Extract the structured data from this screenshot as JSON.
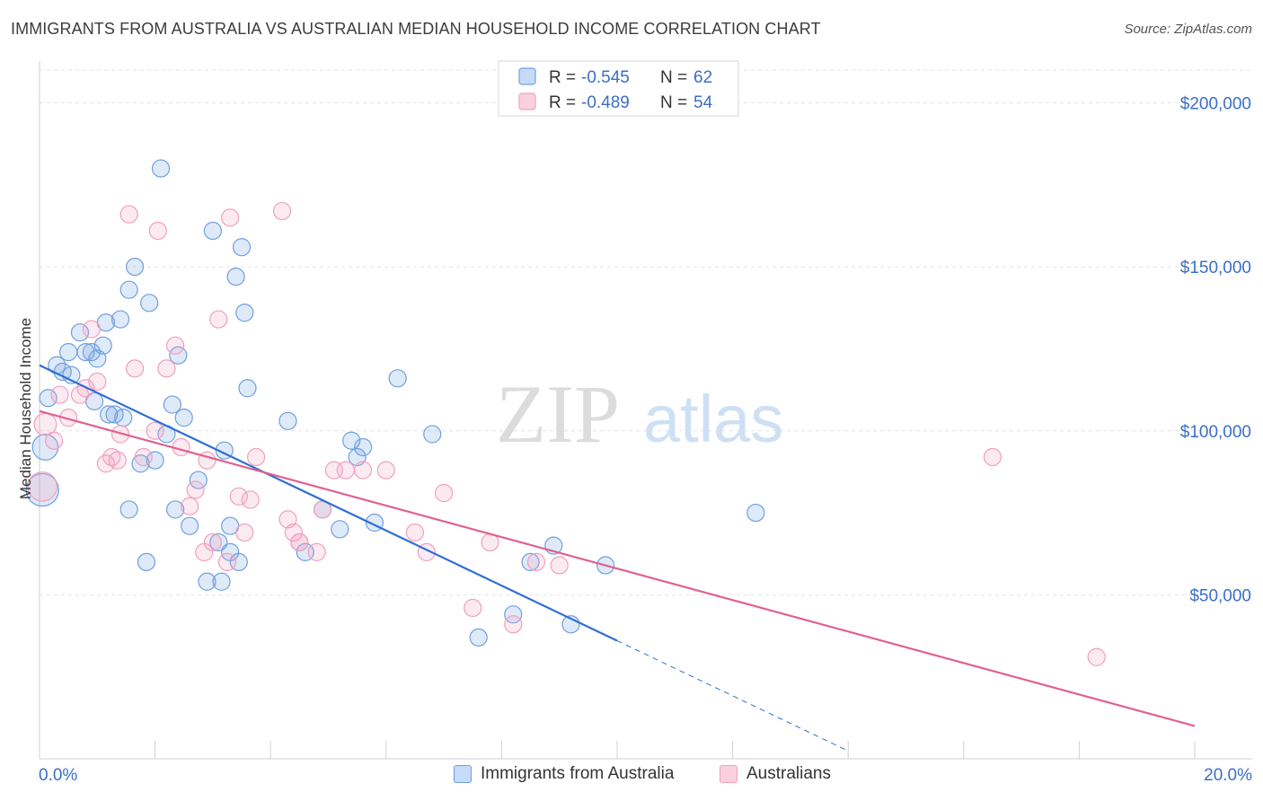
{
  "title": "IMMIGRANTS FROM AUSTRALIA VS AUSTRALIAN MEDIAN HOUSEHOLD INCOME CORRELATION CHART",
  "source": "Source: ZipAtlas.com",
  "watermark": {
    "zip": "ZIP",
    "atlas": "atlas"
  },
  "legend_top": {
    "r_label": "R =",
    "n_label": "N =",
    "rows": [
      {
        "r": "-0.545",
        "n": "62"
      },
      {
        "r": "-0.489",
        "n": "54"
      }
    ]
  },
  "chart_data": {
    "type": "scatter",
    "title": "IMMIGRANTS FROM AUSTRALIA VS AUSTRALIAN MEDIAN HOUSEHOLD INCOME CORRELATION CHART",
    "xlabel": "",
    "ylabel": "Median Household Income",
    "xlim": [
      0,
      20
    ],
    "ylim": [
      0,
      210000
    ],
    "x_tick_labels": [
      "0.0%",
      "20.0%"
    ],
    "y_ticks": [
      50000,
      100000,
      150000,
      200000
    ],
    "y_tick_labels": [
      "$50,000",
      "$100,000",
      "$150,000",
      "$200,000"
    ],
    "grid": true,
    "legend_position": "bottom",
    "colors": {
      "blue": "#6f9fe0",
      "blue_line": "#2f6fd4",
      "pink": "#f0a0bd",
      "pink_line": "#e0608e",
      "tick_label": "#3b6fc4"
    },
    "series": [
      {
        "name": "Immigrants from Australia",
        "color": "#6f9fe0",
        "r": -0.545,
        "n": 62,
        "trend": {
          "x0": 0.0,
          "y0": 120000,
          "x1": 10.0,
          "y1": 36000,
          "dash_to_x": 14.0
        },
        "points": [
          {
            "x": 0.15,
            "y": 110000,
            "s": 1.0
          },
          {
            "x": 0.3,
            "y": 120000,
            "s": 1.0
          },
          {
            "x": 0.4,
            "y": 118000,
            "s": 1.0
          },
          {
            "x": 0.5,
            "y": 124000,
            "s": 1.0
          },
          {
            "x": 0.55,
            "y": 117000,
            "s": 1.0
          },
          {
            "x": 0.7,
            "y": 130000,
            "s": 1.0
          },
          {
            "x": 0.8,
            "y": 124000,
            "s": 1.0
          },
          {
            "x": 0.9,
            "y": 124000,
            "s": 1.0
          },
          {
            "x": 0.95,
            "y": 109000,
            "s": 1.0
          },
          {
            "x": 1.0,
            "y": 122000,
            "s": 1.0
          },
          {
            "x": 1.1,
            "y": 126000,
            "s": 1.0
          },
          {
            "x": 1.15,
            "y": 133000,
            "s": 1.0
          },
          {
            "x": 1.2,
            "y": 105000,
            "s": 1.0
          },
          {
            "x": 1.3,
            "y": 105000,
            "s": 1.0
          },
          {
            "x": 1.4,
            "y": 134000,
            "s": 1.0
          },
          {
            "x": 1.55,
            "y": 143000,
            "s": 1.0
          },
          {
            "x": 1.65,
            "y": 150000,
            "s": 1.0
          },
          {
            "x": 1.45,
            "y": 104000,
            "s": 1.0
          },
          {
            "x": 1.75,
            "y": 90000,
            "s": 1.0
          },
          {
            "x": 1.9,
            "y": 139000,
            "s": 1.0
          },
          {
            "x": 2.1,
            "y": 180000,
            "s": 1.0
          },
          {
            "x": 2.2,
            "y": 99000,
            "s": 1.0
          },
          {
            "x": 2.3,
            "y": 108000,
            "s": 1.0
          },
          {
            "x": 2.4,
            "y": 123000,
            "s": 1.0
          },
          {
            "x": 2.5,
            "y": 104000,
            "s": 1.0
          },
          {
            "x": 2.6,
            "y": 71000,
            "s": 1.0
          },
          {
            "x": 2.75,
            "y": 85000,
            "s": 1.0
          },
          {
            "x": 2.9,
            "y": 54000,
            "s": 1.0
          },
          {
            "x": 3.0,
            "y": 161000,
            "s": 1.0
          },
          {
            "x": 3.1,
            "y": 66000,
            "s": 1.0
          },
          {
            "x": 3.2,
            "y": 94000,
            "s": 1.0
          },
          {
            "x": 3.3,
            "y": 71000,
            "s": 1.0
          },
          {
            "x": 3.4,
            "y": 147000,
            "s": 1.0
          },
          {
            "x": 3.5,
            "y": 156000,
            "s": 1.0
          },
          {
            "x": 3.55,
            "y": 136000,
            "s": 1.0
          },
          {
            "x": 3.6,
            "y": 113000,
            "s": 1.0
          },
          {
            "x": 3.45,
            "y": 60000,
            "s": 1.0
          },
          {
            "x": 3.15,
            "y": 54000,
            "s": 1.0
          },
          {
            "x": 1.55,
            "y": 76000,
            "s": 1.0
          },
          {
            "x": 1.85,
            "y": 60000,
            "s": 1.0
          },
          {
            "x": 4.3,
            "y": 103000,
            "s": 1.0
          },
          {
            "x": 4.9,
            "y": 76000,
            "s": 1.0
          },
          {
            "x": 5.2,
            "y": 70000,
            "s": 1.0
          },
          {
            "x": 5.4,
            "y": 97000,
            "s": 1.0
          },
          {
            "x": 5.5,
            "y": 92000,
            "s": 1.0
          },
          {
            "x": 5.6,
            "y": 95000,
            "s": 1.0
          },
          {
            "x": 5.8,
            "y": 72000,
            "s": 1.0
          },
          {
            "x": 6.2,
            "y": 116000,
            "s": 1.0
          },
          {
            "x": 6.8,
            "y": 99000,
            "s": 1.0
          },
          {
            "x": 7.6,
            "y": 37000,
            "s": 1.0
          },
          {
            "x": 8.2,
            "y": 44000,
            "s": 1.0
          },
          {
            "x": 8.5,
            "y": 60000,
            "s": 1.0
          },
          {
            "x": 8.9,
            "y": 65000,
            "s": 1.0
          },
          {
            "x": 9.2,
            "y": 41000,
            "s": 1.0
          },
          {
            "x": 9.8,
            "y": 59000,
            "s": 1.0
          },
          {
            "x": 12.4,
            "y": 75000,
            "s": 1.0
          },
          {
            "x": 0.1,
            "y": 95000,
            "s": 1.5
          },
          {
            "x": 0.05,
            "y": 82000,
            "s": 1.9
          },
          {
            "x": 3.3,
            "y": 63000,
            "s": 1.0
          },
          {
            "x": 2.35,
            "y": 76000,
            "s": 1.0
          },
          {
            "x": 4.6,
            "y": 63000,
            "s": 1.0
          },
          {
            "x": 2.0,
            "y": 91000,
            "s": 1.0
          }
        ]
      },
      {
        "name": "Australians",
        "color": "#f0a0bd",
        "r": -0.489,
        "n": 54,
        "trend": {
          "x0": 0.0,
          "y0": 106000,
          "x1": 20.0,
          "y1": 10000
        },
        "points": [
          {
            "x": 0.1,
            "y": 102000,
            "s": 1.3
          },
          {
            "x": 0.25,
            "y": 97000,
            "s": 1.0
          },
          {
            "x": 0.35,
            "y": 111000,
            "s": 1.0
          },
          {
            "x": 0.5,
            "y": 104000,
            "s": 1.0
          },
          {
            "x": 0.7,
            "y": 111000,
            "s": 1.0
          },
          {
            "x": 0.8,
            "y": 113000,
            "s": 1.0
          },
          {
            "x": 0.9,
            "y": 131000,
            "s": 1.0
          },
          {
            "x": 1.0,
            "y": 115000,
            "s": 1.0
          },
          {
            "x": 1.15,
            "y": 90000,
            "s": 1.0
          },
          {
            "x": 1.25,
            "y": 92000,
            "s": 1.0
          },
          {
            "x": 1.4,
            "y": 99000,
            "s": 1.0
          },
          {
            "x": 1.55,
            "y": 166000,
            "s": 1.0
          },
          {
            "x": 1.65,
            "y": 119000,
            "s": 1.0
          },
          {
            "x": 1.8,
            "y": 92000,
            "s": 1.0
          },
          {
            "x": 2.0,
            "y": 100000,
            "s": 1.0
          },
          {
            "x": 2.05,
            "y": 161000,
            "s": 1.0
          },
          {
            "x": 2.2,
            "y": 119000,
            "s": 1.0
          },
          {
            "x": 2.35,
            "y": 126000,
            "s": 1.0
          },
          {
            "x": 2.45,
            "y": 95000,
            "s": 1.0
          },
          {
            "x": 2.6,
            "y": 77000,
            "s": 1.0
          },
          {
            "x": 2.7,
            "y": 82000,
            "s": 1.0
          },
          {
            "x": 2.85,
            "y": 63000,
            "s": 1.0
          },
          {
            "x": 3.0,
            "y": 66000,
            "s": 1.0
          },
          {
            "x": 3.1,
            "y": 134000,
            "s": 1.0
          },
          {
            "x": 3.3,
            "y": 165000,
            "s": 1.0
          },
          {
            "x": 3.45,
            "y": 80000,
            "s": 1.0
          },
          {
            "x": 3.55,
            "y": 69000,
            "s": 1.0
          },
          {
            "x": 3.65,
            "y": 79000,
            "s": 1.0
          },
          {
            "x": 3.75,
            "y": 92000,
            "s": 1.0
          },
          {
            "x": 3.25,
            "y": 60000,
            "s": 1.0
          },
          {
            "x": 4.2,
            "y": 167000,
            "s": 1.0
          },
          {
            "x": 4.3,
            "y": 73000,
            "s": 1.0
          },
          {
            "x": 4.4,
            "y": 69000,
            "s": 1.0
          },
          {
            "x": 4.5,
            "y": 66000,
            "s": 1.0
          },
          {
            "x": 4.9,
            "y": 76000,
            "s": 1.0
          },
          {
            "x": 5.1,
            "y": 88000,
            "s": 1.0
          },
          {
            "x": 5.3,
            "y": 88000,
            "s": 1.0
          },
          {
            "x": 5.6,
            "y": 88000,
            "s": 1.0
          },
          {
            "x": 6.0,
            "y": 88000,
            "s": 1.0
          },
          {
            "x": 6.5,
            "y": 69000,
            "s": 1.0
          },
          {
            "x": 6.7,
            "y": 63000,
            "s": 1.0
          },
          {
            "x": 7.0,
            "y": 81000,
            "s": 1.0
          },
          {
            "x": 7.5,
            "y": 46000,
            "s": 1.0
          },
          {
            "x": 7.8,
            "y": 66000,
            "s": 1.0
          },
          {
            "x": 8.2,
            "y": 41000,
            "s": 1.0
          },
          {
            "x": 8.6,
            "y": 60000,
            "s": 1.0
          },
          {
            "x": 9.0,
            "y": 59000,
            "s": 1.0
          },
          {
            "x": 16.5,
            "y": 92000,
            "s": 1.0
          },
          {
            "x": 18.3,
            "y": 31000,
            "s": 1.0
          },
          {
            "x": 0.05,
            "y": 83000,
            "s": 1.7
          },
          {
            "x": 4.8,
            "y": 63000,
            "s": 1.0
          },
          {
            "x": 2.9,
            "y": 91000,
            "s": 1.0
          },
          {
            "x": 1.35,
            "y": 91000,
            "s": 1.0
          },
          {
            "x": 4.5,
            "y": 66000,
            "s": 1.0
          }
        ]
      }
    ]
  }
}
